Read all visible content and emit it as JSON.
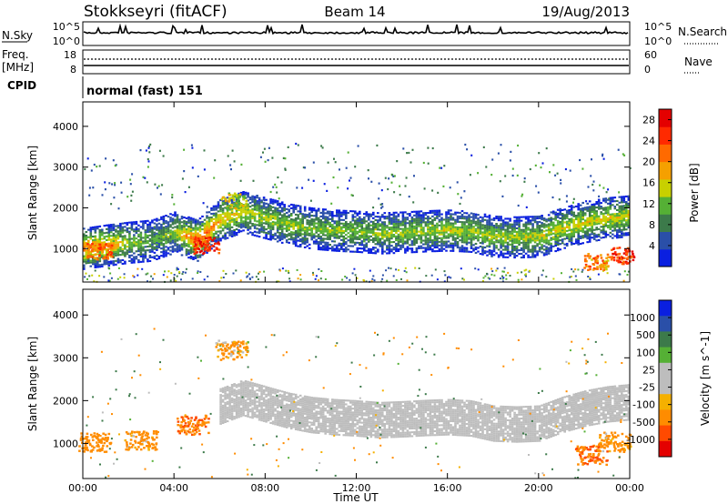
{
  "header": {
    "station": "Stokkseyri (fitACF)",
    "beam": "Beam 14",
    "date": "19/Aug/2013"
  },
  "noise_panel": {
    "left_label": "N.Sky",
    "right_label": "N.Search",
    "left_ticks": [
      "10^5",
      "10^0"
    ],
    "right_ticks": [
      "10^5",
      "10^0"
    ]
  },
  "freq_panel": {
    "left_label_top": "Freq.",
    "left_label_unit": "[MHz]",
    "right_label": "Nave",
    "left_ticks": [
      "18",
      "8"
    ],
    "right_ticks": [
      "60",
      "0"
    ]
  },
  "cpid": {
    "label": "CPID",
    "value": "normal (fast) 151"
  },
  "colors": {
    "power_scale": [
      "#0a1fe0",
      "#2a4fa8",
      "#3c7a4a",
      "#55b035",
      "#c8d000",
      "#f5a000",
      "#ff6a00",
      "#ff2a00",
      "#e40000"
    ],
    "velocity_scale": [
      "#e40000",
      "#ff4a00",
      "#ff8c00",
      "#f5b000",
      "#bdbdbd",
      "#bdbdbd",
      "#55b035",
      "#3c7a4a",
      "#2a4fa8",
      "#0a1fe0"
    ],
    "ground_scatter": "#bdbdbd"
  },
  "chart_data": [
    {
      "type": "heatmap",
      "title": "",
      "xlabel": "Time UT",
      "ylabel": "Slant Range [km]",
      "x_ticks": [
        "00:00",
        "04:00",
        "08:00",
        "12:00",
        "16:00",
        "20:00",
        "00:00"
      ],
      "xlim_hours": [
        0,
        24
      ],
      "y_ticks": [
        1000,
        2000,
        3000,
        4000
      ],
      "ylim": [
        180,
        4600
      ],
      "colorbar": {
        "label": "Power [dB]",
        "ticks": [
          4,
          8,
          12,
          16,
          20,
          24,
          28
        ],
        "range": [
          0,
          30
        ]
      },
      "echo_band": [
        {
          "t": 0.0,
          "range": 1000,
          "db": 22
        },
        {
          "t": 1.0,
          "range": 1080,
          "db": 20
        },
        {
          "t": 2.0,
          "range": 1150,
          "db": 14
        },
        {
          "t": 3.0,
          "range": 1200,
          "db": 10
        },
        {
          "t": 4.0,
          "range": 1400,
          "db": 14
        },
        {
          "t": 5.0,
          "range": 1200,
          "db": 24
        },
        {
          "t": 6.0,
          "range": 1700,
          "db": 18
        },
        {
          "t": 7.0,
          "range": 1900,
          "db": 16
        },
        {
          "t": 8.0,
          "range": 1750,
          "db": 14
        },
        {
          "t": 9.0,
          "range": 1600,
          "db": 14
        },
        {
          "t": 10.0,
          "range": 1500,
          "db": 13
        },
        {
          "t": 11.0,
          "range": 1450,
          "db": 13
        },
        {
          "t": 12.0,
          "range": 1420,
          "db": 13
        },
        {
          "t": 13.0,
          "range": 1380,
          "db": 14
        },
        {
          "t": 14.0,
          "range": 1400,
          "db": 14
        },
        {
          "t": 15.0,
          "range": 1430,
          "db": 14
        },
        {
          "t": 16.0,
          "range": 1450,
          "db": 15
        },
        {
          "t": 17.0,
          "range": 1420,
          "db": 14
        },
        {
          "t": 18.0,
          "range": 1300,
          "db": 14
        },
        {
          "t": 19.0,
          "range": 1280,
          "db": 14
        },
        {
          "t": 20.0,
          "range": 1300,
          "db": 15
        },
        {
          "t": 21.0,
          "range": 1500,
          "db": 16
        },
        {
          "t": 22.0,
          "range": 1650,
          "db": 16
        },
        {
          "t": 23.0,
          "range": 1750,
          "db": 16
        },
        {
          "t": 24.0,
          "range": 1800,
          "db": 16
        }
      ],
      "strong_patches": [
        {
          "t": 0.7,
          "range": 950,
          "db": 26
        },
        {
          "t": 5.4,
          "range": 1100,
          "db": 30
        },
        {
          "t": 6.6,
          "range": 2200,
          "db": 18
        },
        {
          "t": 22.5,
          "range": 700,
          "db": 24
        },
        {
          "t": 23.6,
          "range": 850,
          "db": 28
        }
      ]
    },
    {
      "type": "heatmap",
      "title": "",
      "xlabel": "Time UT",
      "ylabel": "Slant Range [km]",
      "x_ticks": [
        "00:00",
        "04:00",
        "08:00",
        "12:00",
        "16:00",
        "20:00",
        "00:00"
      ],
      "xlim_hours": [
        0,
        24
      ],
      "y_ticks": [
        1000,
        2000,
        3000,
        4000
      ],
      "ylim": [
        180,
        4600
      ],
      "colorbar": {
        "label": "Velocity [m s^-1]",
        "ticks": [
          "1000",
          "500",
          "100",
          "25",
          "-25",
          "-100",
          "-500",
          "-1000"
        ]
      },
      "ground_scatter_band": {
        "t_start": 6.0,
        "t_end": 24.0,
        "range_min": 1300,
        "range_max": 2100
      },
      "flow_patches": [
        {
          "t": 0.5,
          "range": 1050,
          "velocity": -300
        },
        {
          "t": 2.5,
          "range": 1100,
          "velocity": -200
        },
        {
          "t": 4.8,
          "range": 1450,
          "velocity": -400
        },
        {
          "t": 6.5,
          "range": 3200,
          "velocity": -150
        },
        {
          "t": 22.3,
          "range": 750,
          "velocity": -500
        },
        {
          "t": 23.3,
          "range": 1050,
          "velocity": -200
        }
      ]
    }
  ]
}
